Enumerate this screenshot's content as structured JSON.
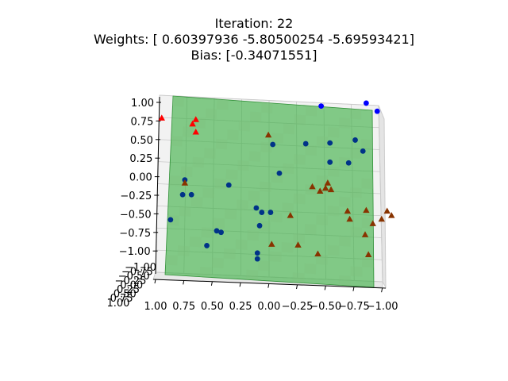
{
  "chart_data": {
    "type": "scatter",
    "projection": "3d",
    "title": {
      "line1": "Iteration: 22",
      "line2": "Weights: [ 0.60397936 -5.80500254 -5.69593421]",
      "line3": "Bias: [-0.34071551]"
    },
    "xlabel": "",
    "ylabel": "",
    "zlabel": "",
    "xlim": [
      1.0,
      -1.0
    ],
    "ylim": [
      -1.0,
      1.0
    ],
    "zlim": [
      -1.0,
      1.0
    ],
    "x_ticks": [
      "1.00",
      "0.75",
      "0.50",
      "0.25",
      "0.00",
      "−0.25",
      "−0.50",
      "−0.75",
      "−1.00"
    ],
    "z_ticks": [
      "1.00",
      "0.75",
      "0.50",
      "0.25",
      "0.00",
      "−0.25",
      "−0.50",
      "−0.75",
      "−1.00"
    ],
    "y_ticks": [
      "−1.00",
      "−0.75",
      "−0.50",
      "−0.25",
      "0.00",
      "0.25",
      "0.50",
      "0.75",
      "1.00"
    ],
    "grid": true,
    "colors": {
      "plane": "#3cb043",
      "class_a": "#0000ff",
      "class_a_deep": "#003388",
      "class_b": "#ff0000",
      "class_b_deep": "#883300"
    },
    "series": [
      {
        "marker": "circle",
        "points": [
          {
            "x": -0.47,
            "z": 0.95,
            "c": "class_a"
          },
          {
            "x": -0.88,
            "z": 0.99,
            "c": "class_a"
          },
          {
            "x": -0.98,
            "z": 0.88,
            "c": "class_a"
          },
          {
            "x": -0.03,
            "z": 0.43,
            "c": "class_a_deep"
          },
          {
            "x": -0.33,
            "z": 0.44,
            "c": "class_a_deep"
          },
          {
            "x": -0.55,
            "z": 0.45,
            "c": "class_a_deep"
          },
          {
            "x": -0.78,
            "z": 0.49,
            "c": "class_a_deep"
          },
          {
            "x": -0.85,
            "z": 0.34,
            "c": "class_a_deep"
          },
          {
            "x": -0.55,
            "z": 0.19,
            "c": "class_a_deep"
          },
          {
            "x": -0.72,
            "z": 0.18,
            "c": "class_a_deep"
          },
          {
            "x": -0.09,
            "z": 0.04,
            "c": "class_a_deep"
          },
          {
            "x": 0.37,
            "z": -0.12,
            "c": "class_a_deep"
          },
          {
            "x": 0.77,
            "z": -0.05,
            "c": "class_a_deep"
          },
          {
            "x": 0.79,
            "z": -0.25,
            "c": "class_a_deep"
          },
          {
            "x": 0.71,
            "z": -0.25,
            "c": "class_a_deep"
          },
          {
            "x": 0.12,
            "z": -0.43,
            "c": "class_a_deep"
          },
          {
            "x": 0.07,
            "z": -0.49,
            "c": "class_a_deep"
          },
          {
            "x": -0.01,
            "z": -0.49,
            "c": "class_a_deep"
          },
          {
            "x": 0.9,
            "z": -0.59,
            "c": "class_a_deep"
          },
          {
            "x": 0.09,
            "z": -0.67,
            "c": "class_a_deep"
          },
          {
            "x": 0.48,
            "z": -0.74,
            "c": "class_a_deep"
          },
          {
            "x": 0.44,
            "z": -0.76,
            "c": "class_a_deep"
          },
          {
            "x": 0.57,
            "z": -0.94,
            "c": "class_a_deep"
          },
          {
            "x": 0.11,
            "z": -1.04,
            "c": "class_a_deep"
          },
          {
            "x": 0.11,
            "z": -1.12,
            "c": "class_a_deep"
          }
        ]
      },
      {
        "marker": "triangle",
        "points": [
          {
            "x": 0.98,
            "z": 0.79,
            "c": "class_b"
          },
          {
            "x": 0.67,
            "z": 0.77,
            "c": "class_b"
          },
          {
            "x": 0.7,
            "z": 0.71,
            "c": "class_b"
          },
          {
            "x": 0.67,
            "z": 0.6,
            "c": "class_b"
          },
          {
            "x": 0.01,
            "z": 0.56,
            "c": "class_b_deep"
          },
          {
            "x": 0.77,
            "z": -0.09,
            "c": "class_b_deep"
          },
          {
            "x": -0.39,
            "z": -0.14,
            "c": "class_b_deep"
          },
          {
            "x": -0.46,
            "z": -0.2,
            "c": "class_b_deep"
          },
          {
            "x": -0.53,
            "z": -0.09,
            "c": "class_b_deep"
          },
          {
            "x": -0.51,
            "z": -0.16,
            "c": "class_b_deep"
          },
          {
            "x": -0.56,
            "z": -0.18,
            "c": "class_b_deep"
          },
          {
            "x": -0.19,
            "z": -0.53,
            "c": "class_b_deep"
          },
          {
            "x": -0.71,
            "z": -0.47,
            "c": "class_b_deep"
          },
          {
            "x": -0.88,
            "z": -0.46,
            "c": "class_b_deep"
          },
          {
            "x": -1.07,
            "z": -0.47,
            "c": "class_b_deep"
          },
          {
            "x": -1.11,
            "z": -0.53,
            "c": "class_b_deep"
          },
          {
            "x": -0.73,
            "z": -0.58,
            "c": "class_b_deep"
          },
          {
            "x": -1.02,
            "z": -0.58,
            "c": "class_b_deep"
          },
          {
            "x": -0.94,
            "z": -0.64,
            "c": "class_b_deep"
          },
          {
            "x": -0.87,
            "z": -0.79,
            "c": "class_b_deep"
          },
          {
            "x": -0.02,
            "z": -0.92,
            "c": "class_b_deep"
          },
          {
            "x": -0.26,
            "z": -0.93,
            "c": "class_b_deep"
          },
          {
            "x": -0.44,
            "z": -1.05,
            "c": "class_b_deep"
          },
          {
            "x": -0.9,
            "z": -1.06,
            "c": "class_b_deep"
          }
        ]
      }
    ]
  }
}
